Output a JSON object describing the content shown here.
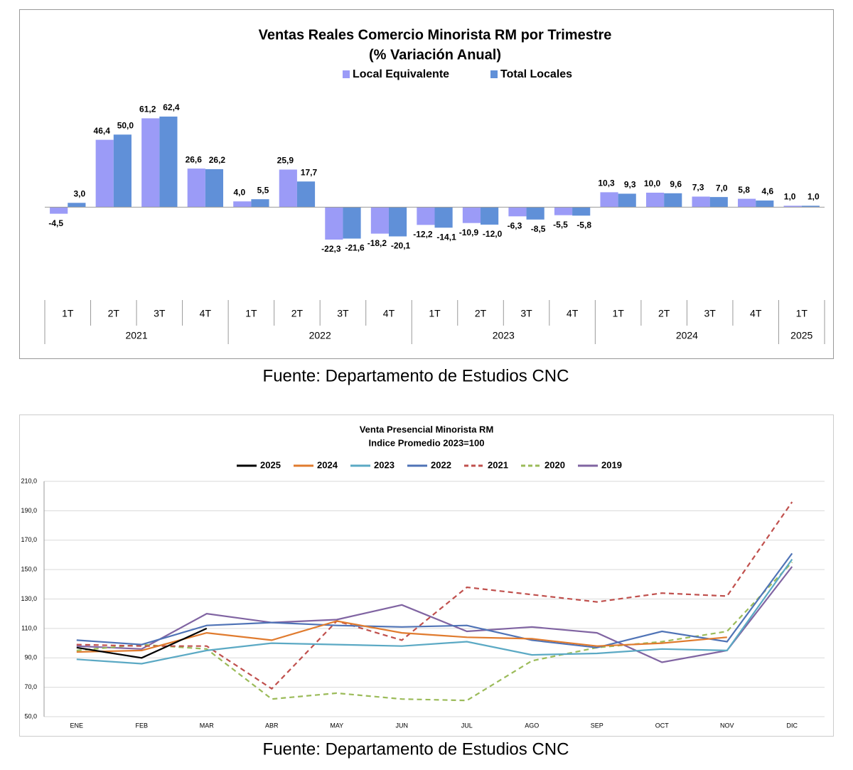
{
  "chart_data": [
    {
      "type": "bar",
      "title": "Ventas Reales Comercio Minorista RM por Trimestre",
      "subtitle": "(% Variación Anual)",
      "groups": [
        {
          "label": "2021",
          "categories": [
            "1T",
            "2T",
            "3T",
            "4T"
          ]
        },
        {
          "label": "2022",
          "categories": [
            "1T",
            "2T",
            "3T",
            "4T"
          ]
        },
        {
          "label": "2023",
          "categories": [
            "1T",
            "2T",
            "3T",
            "4T"
          ]
        },
        {
          "label": "2024",
          "categories": [
            "1T",
            "2T",
            "3T",
            "4T"
          ]
        },
        {
          "label": "2025",
          "categories": [
            "1T"
          ]
        }
      ],
      "series": [
        {
          "name": "Local Equivalente",
          "color": "#9b9bf7",
          "values": [
            -4.5,
            46.4,
            61.2,
            26.6,
            4.0,
            25.9,
            -22.3,
            -18.2,
            -12.2,
            -10.9,
            -6.3,
            -5.5,
            10.3,
            10.0,
            7.3,
            5.8,
            1.0
          ],
          "value_labels": [
            "-4,5",
            "46,4",
            "61,2",
            "26,6",
            "4,0",
            "25,9",
            "-22,3",
            "-18,2",
            "-12,2",
            "-10,9",
            "-6,3",
            "-5,5",
            "10,3",
            "10,0",
            "7,3",
            "5,8",
            "1,0"
          ]
        },
        {
          "name": "Total Locales",
          "color": "#6090d8",
          "values": [
            3.0,
            50.0,
            62.4,
            26.2,
            5.5,
            17.7,
            -21.6,
            -20.1,
            -14.1,
            -12.0,
            -8.5,
            -5.8,
            9.3,
            9.6,
            7.0,
            4.6,
            1.0
          ],
          "value_labels": [
            "3,0",
            "50,0",
            "62,4",
            "26,2",
            "5,5",
            "17,7",
            "-21,6",
            "-20,1",
            "-14,1",
            "-12,0",
            "-8,5",
            "-5,8",
            "9,3",
            "9,6",
            "7,0",
            "4,6",
            "1,0"
          ]
        }
      ],
      "ylim": [
        -60,
        80
      ],
      "legend": "top",
      "source": "Fuente: Departamento de Estudios CNC"
    },
    {
      "type": "line",
      "title": "Venta Presencial Minorista RM",
      "subtitle": "Indice Promedio 2023=100",
      "categories": [
        "ENE",
        "FEB",
        "MAR",
        "ABR",
        "MAY",
        "JUN",
        "JUL",
        "AGO",
        "SEP",
        "OCT",
        "NOV",
        "DIC"
      ],
      "series": [
        {
          "name": "2025",
          "color": "#000000",
          "dash": false,
          "values": [
            97,
            90,
            110,
            null,
            null,
            null,
            null,
            null,
            null,
            null,
            null,
            null
          ]
        },
        {
          "name": "2024",
          "color": "#e07b2e",
          "dash": false,
          "values": [
            94,
            95,
            107,
            102,
            115,
            107,
            104,
            103,
            98,
            100,
            104,
            null
          ]
        },
        {
          "name": "2023",
          "color": "#5ba9c4",
          "dash": false,
          "values": [
            89,
            86,
            95,
            100,
            99,
            98,
            101,
            92,
            93,
            96,
            95,
            157
          ]
        },
        {
          "name": "2022",
          "color": "#4f73b6",
          "dash": false,
          "values": [
            102,
            99,
            112,
            114,
            112,
            111,
            112,
            102,
            97,
            108,
            101,
            161
          ]
        },
        {
          "name": "2021",
          "color": "#c0504d",
          "dash": true,
          "values": [
            99,
            98,
            98,
            69,
            115,
            102,
            138,
            133,
            128,
            134,
            132,
            196
          ]
        },
        {
          "name": "2020",
          "color": "#9bbb59",
          "dash": true,
          "values": [
            95,
            99,
            96,
            62,
            66,
            62,
            61,
            88,
            97,
            101,
            108,
            155
          ]
        },
        {
          "name": "2019",
          "color": "#8064a2",
          "dash": false,
          "values": [
            98,
            96,
            120,
            114,
            116,
            126,
            108,
            111,
            107,
            87,
            95,
            152
          ]
        }
      ],
      "ylim": [
        50,
        210
      ],
      "yticks": [
        {
          "value": 50,
          "label": "50,0"
        },
        {
          "value": 70,
          "label": "70,0"
        },
        {
          "value": 90,
          "label": "90,0"
        },
        {
          "value": 110,
          "label": "110,0"
        },
        {
          "value": 130,
          "label": "130,0"
        },
        {
          "value": 150,
          "label": "150,0"
        },
        {
          "value": 170,
          "label": "170,0"
        },
        {
          "value": 190,
          "label": "190,0"
        },
        {
          "value": 210,
          "label": "210,0"
        }
      ],
      "grid": true,
      "legend": "top",
      "source": "Fuente: Departamento de Estudios CNC"
    }
  ]
}
